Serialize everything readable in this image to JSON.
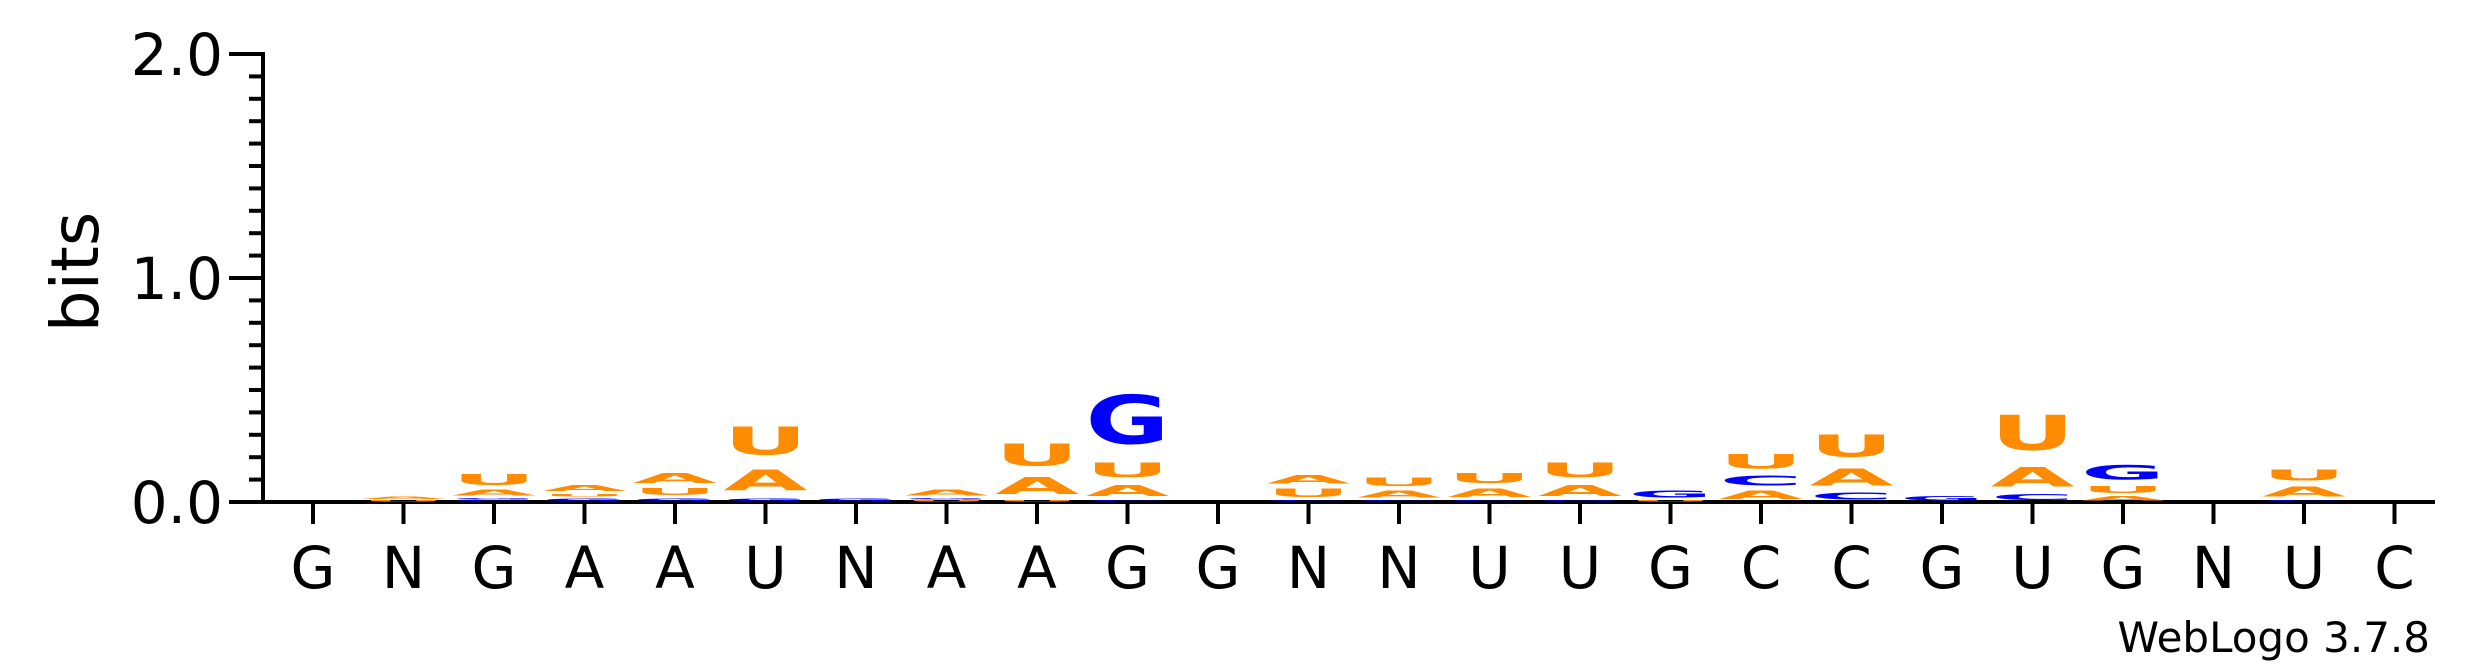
{
  "chart_data": {
    "type": "sequence-logo",
    "ylabel": "bits",
    "ylim": [
      0,
      2.0
    ],
    "yticks": [
      {
        "value": 0.0,
        "label": "0.0"
      },
      {
        "value": 1.0,
        "label": "1.0"
      },
      {
        "value": 2.0,
        "label": "2.0"
      }
    ],
    "colors": {
      "A": "#FF8C00",
      "U": "#FF8C00",
      "G": "#0000FF",
      "C": "#0000FF"
    },
    "positions": [
      {
        "label": "G",
        "letters": []
      },
      {
        "label": "N",
        "letters": [
          {
            "base": "U",
            "bits": 0.01
          },
          {
            "base": "A",
            "bits": 0.02
          }
        ]
      },
      {
        "label": "G",
        "letters": [
          {
            "base": "C",
            "bits": 0.01
          },
          {
            "base": "G",
            "bits": 0.01
          },
          {
            "base": "A",
            "bits": 0.04
          },
          {
            "base": "U",
            "bits": 0.08
          }
        ]
      },
      {
        "label": "A",
        "letters": [
          {
            "base": "G",
            "bits": 0.02
          },
          {
            "base": "U",
            "bits": 0.02
          },
          {
            "base": "A",
            "bits": 0.04
          }
        ]
      },
      {
        "label": "A",
        "letters": [
          {
            "base": "G",
            "bits": 0.02
          },
          {
            "base": "U",
            "bits": 0.05
          },
          {
            "base": "A",
            "bits": 0.07
          }
        ]
      },
      {
        "label": "U",
        "letters": [
          {
            "base": "G",
            "bits": 0.02
          },
          {
            "base": "A",
            "bits": 0.15
          },
          {
            "base": "U",
            "bits": 0.2
          }
        ]
      },
      {
        "label": "N",
        "letters": [
          {
            "base": "G",
            "bits": 0.02
          }
        ]
      },
      {
        "label": "A",
        "letters": [
          {
            "base": "U",
            "bits": 0.01
          },
          {
            "base": "G",
            "bits": 0.01
          },
          {
            "base": "A",
            "bits": 0.04
          }
        ]
      },
      {
        "label": "A",
        "letters": [
          {
            "base": "U",
            "bits": 0.01
          },
          {
            "base": "A",
            "bits": 0.12
          },
          {
            "base": "U",
            "bits": 0.16
          }
        ]
      },
      {
        "label": "G",
        "letters": [
          {
            "base": "C",
            "bits": 0.01
          },
          {
            "base": "A",
            "bits": 0.08
          },
          {
            "base": "U",
            "bits": 0.1
          },
          {
            "base": "G",
            "bits": 0.35
          }
        ]
      },
      {
        "label": "G",
        "letters": []
      },
      {
        "label": "N",
        "letters": [
          {
            "base": "C",
            "bits": 0.01
          },
          {
            "base": "U",
            "bits": 0.06
          },
          {
            "base": "A",
            "bits": 0.06
          }
        ]
      },
      {
        "label": "N",
        "letters": [
          {
            "base": "C",
            "bits": 0.01
          },
          {
            "base": "A",
            "bits": 0.05
          },
          {
            "base": "U",
            "bits": 0.06
          }
        ]
      },
      {
        "label": "U",
        "letters": [
          {
            "base": "C",
            "bits": 0.01
          },
          {
            "base": "A",
            "bits": 0.06
          },
          {
            "base": "U",
            "bits": 0.07
          }
        ]
      },
      {
        "label": "U",
        "letters": [
          {
            "base": "G",
            "bits": 0.01
          },
          {
            "base": "A",
            "bits": 0.08
          },
          {
            "base": "U",
            "bits": 0.1
          }
        ]
      },
      {
        "label": "G",
        "letters": [
          {
            "base": "U",
            "bits": 0.01
          },
          {
            "base": "G",
            "bits": 0.05
          }
        ]
      },
      {
        "label": "C",
        "letters": [
          {
            "base": "A",
            "bits": 0.06
          },
          {
            "base": "C",
            "bits": 0.07
          },
          {
            "base": "U",
            "bits": 0.1
          }
        ]
      },
      {
        "label": "C",
        "letters": [
          {
            "base": "C",
            "bits": 0.05
          },
          {
            "base": "A",
            "bits": 0.12
          },
          {
            "base": "U",
            "bits": 0.16
          }
        ]
      },
      {
        "label": "G",
        "letters": [
          {
            "base": "G",
            "bits": 0.03
          }
        ]
      },
      {
        "label": "U",
        "letters": [
          {
            "base": "C",
            "bits": 0.04
          },
          {
            "base": "A",
            "bits": 0.14
          },
          {
            "base": "U",
            "bits": 0.25
          }
        ]
      },
      {
        "label": "G",
        "letters": [
          {
            "base": "A",
            "bits": 0.03
          },
          {
            "base": "U",
            "bits": 0.05
          },
          {
            "base": "G",
            "bits": 0.1
          }
        ]
      },
      {
        "label": "N",
        "letters": []
      },
      {
        "label": "U",
        "letters": [
          {
            "base": "C",
            "bits": 0.01
          },
          {
            "base": "A",
            "bits": 0.07
          },
          {
            "base": "U",
            "bits": 0.08
          }
        ]
      },
      {
        "label": "C",
        "letters": []
      }
    ]
  },
  "footer": "WebLogo 3.7.8"
}
